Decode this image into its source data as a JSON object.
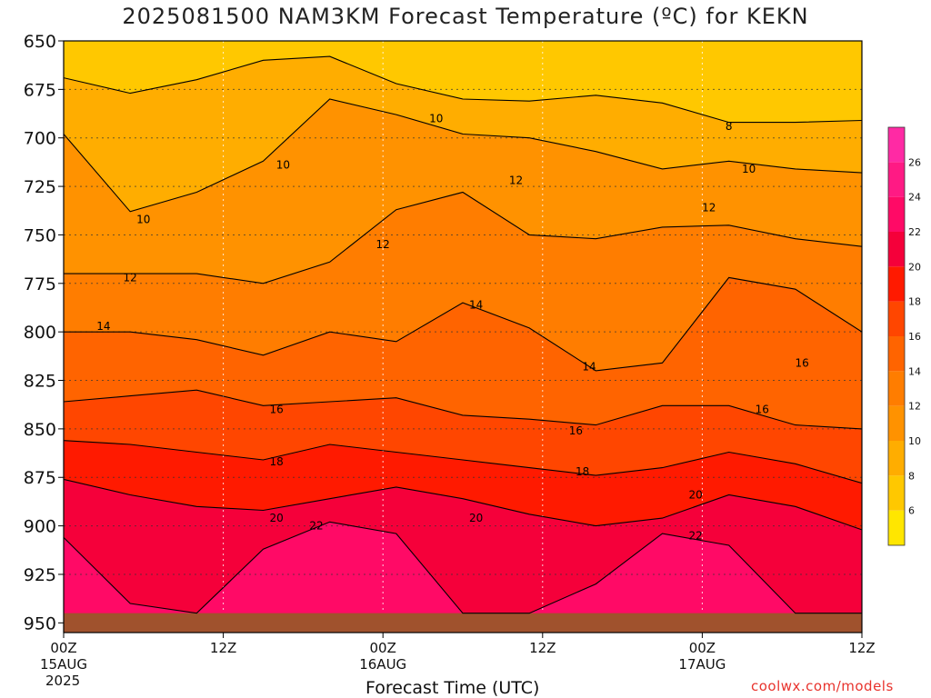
{
  "title": "2025081500 NAM3KM Forecast Temperature (ºC) for KEKN",
  "footer": {
    "x_axis_title": "Forecast Time (UTC)",
    "year": "2025",
    "credit": "coolwx.com/models"
  },
  "colors": {
    "contour_line": "#000000",
    "ground": "#a0522d",
    "credit": "#e8332d"
  },
  "chart_data": {
    "type": "heatmap",
    "title": "2025081500 NAM3KM Forecast Temperature (ºC) for KEKN",
    "xlabel": "Forecast Time (UTC)",
    "ylabel": "",
    "x_range_hours": [
      0,
      60
    ],
    "x_ticks": [
      {
        "hour": 0,
        "label": "00Z",
        "date": "15AUG"
      },
      {
        "hour": 12,
        "label": "12Z",
        "date": ""
      },
      {
        "hour": 24,
        "label": "00Z",
        "date": "16AUG"
      },
      {
        "hour": 36,
        "label": "12Z",
        "date": ""
      },
      {
        "hour": 48,
        "label": "00Z",
        "date": "17AUG"
      },
      {
        "hour": 60,
        "label": "12Z",
        "date": ""
      }
    ],
    "y_range_hpa": [
      650,
      955
    ],
    "y_ticks": [
      650,
      675,
      700,
      725,
      750,
      775,
      800,
      825,
      850,
      875,
      900,
      925,
      950
    ],
    "y_inverted": true,
    "grid": true,
    "ground_pressure_hpa": 945,
    "colorbar": {
      "labels": [
        6,
        8,
        10,
        12,
        14,
        16,
        18,
        20,
        22,
        24,
        26
      ],
      "bands": [
        {
          "from": 4,
          "to": 6,
          "color": "#ffe600"
        },
        {
          "from": 6,
          "to": 8,
          "color": "#ffc800"
        },
        {
          "from": 8,
          "to": 10,
          "color": "#ffad00"
        },
        {
          "from": 10,
          "to": 12,
          "color": "#ff9200"
        },
        {
          "from": 12,
          "to": 14,
          "color": "#ff7d00"
        },
        {
          "from": 14,
          "to": 16,
          "color": "#ff6400"
        },
        {
          "from": 16,
          "to": 18,
          "color": "#ff4600"
        },
        {
          "from": 18,
          "to": 20,
          "color": "#ff1a00"
        },
        {
          "from": 20,
          "to": 22,
          "color": "#f5003a"
        },
        {
          "from": 22,
          "to": 24,
          "color": "#ff0a66"
        },
        {
          "from": 24,
          "to": 26,
          "color": "#ff1a84"
        },
        {
          "from": 26,
          "to": 28,
          "color": "#ff2aa4"
        }
      ]
    },
    "isotherms": [
      {
        "value": 8,
        "pressures": [
          669,
          677,
          670,
          660,
          658,
          672,
          680,
          681,
          678,
          682,
          692,
          692,
          691
        ],
        "labels": [
          {
            "hour": 50.0,
            "pressure": 694
          }
        ]
      },
      {
        "value": 10,
        "pressures": [
          698,
          738,
          728,
          712,
          680,
          688,
          698,
          700,
          707,
          716,
          712,
          716,
          718
        ],
        "labels": [
          {
            "hour": 6.0,
            "pressure": 742
          },
          {
            "hour": 16.5,
            "pressure": 714
          },
          {
            "hour": 28.0,
            "pressure": 690
          },
          {
            "hour": 51.5,
            "pressure": 716
          }
        ]
      },
      {
        "value": 12,
        "pressures": [
          770,
          770,
          770,
          775,
          764,
          737,
          728,
          750,
          752,
          746,
          745,
          752,
          756
        ],
        "labels": [
          {
            "hour": 5.0,
            "pressure": 772
          },
          {
            "hour": 24.0,
            "pressure": 755
          },
          {
            "hour": 34.0,
            "pressure": 722
          },
          {
            "hour": 48.5,
            "pressure": 736
          }
        ]
      },
      {
        "value": 14,
        "pressures": [
          800,
          800,
          804,
          812,
          800,
          805,
          785,
          798,
          820,
          816,
          772,
          778,
          800
        ],
        "labels": [
          {
            "hour": 3.0,
            "pressure": 797
          },
          {
            "hour": 31.0,
            "pressure": 786
          },
          {
            "hour": 39.5,
            "pressure": 818
          }
        ]
      },
      {
        "value": 16,
        "pressures": [
          836,
          833,
          830,
          838,
          836,
          834,
          843,
          845,
          848,
          838,
          838,
          848,
          850
        ],
        "labels": [
          {
            "hour": 16.0,
            "pressure": 840
          },
          {
            "hour": 38.5,
            "pressure": 851
          },
          {
            "hour": 52.5,
            "pressure": 840
          },
          {
            "hour": 55.5,
            "pressure": 816
          }
        ]
      },
      {
        "value": 18,
        "pressures": [
          856,
          858,
          862,
          866,
          858,
          862,
          866,
          870,
          874,
          870,
          862,
          868,
          878
        ],
        "labels": [
          {
            "hour": 16.0,
            "pressure": 867
          },
          {
            "hour": 39.0,
            "pressure": 872
          }
        ]
      },
      {
        "value": 20,
        "pressures": [
          876,
          884,
          890,
          892,
          886,
          880,
          886,
          894,
          900,
          896,
          884,
          890,
          902
        ],
        "labels": [
          {
            "hour": 16.0,
            "pressure": 896
          },
          {
            "hour": 31.0,
            "pressure": 896
          },
          {
            "hour": 47.5,
            "pressure": 884
          }
        ]
      },
      {
        "value": 22,
        "pressures": [
          906,
          940,
          945,
          912,
          898,
          904,
          945,
          945,
          930,
          904,
          910,
          945,
          945
        ],
        "labels": [
          {
            "hour": 19.0,
            "pressure": 900
          },
          {
            "hour": 47.5,
            "pressure": 905
          }
        ]
      }
    ]
  }
}
